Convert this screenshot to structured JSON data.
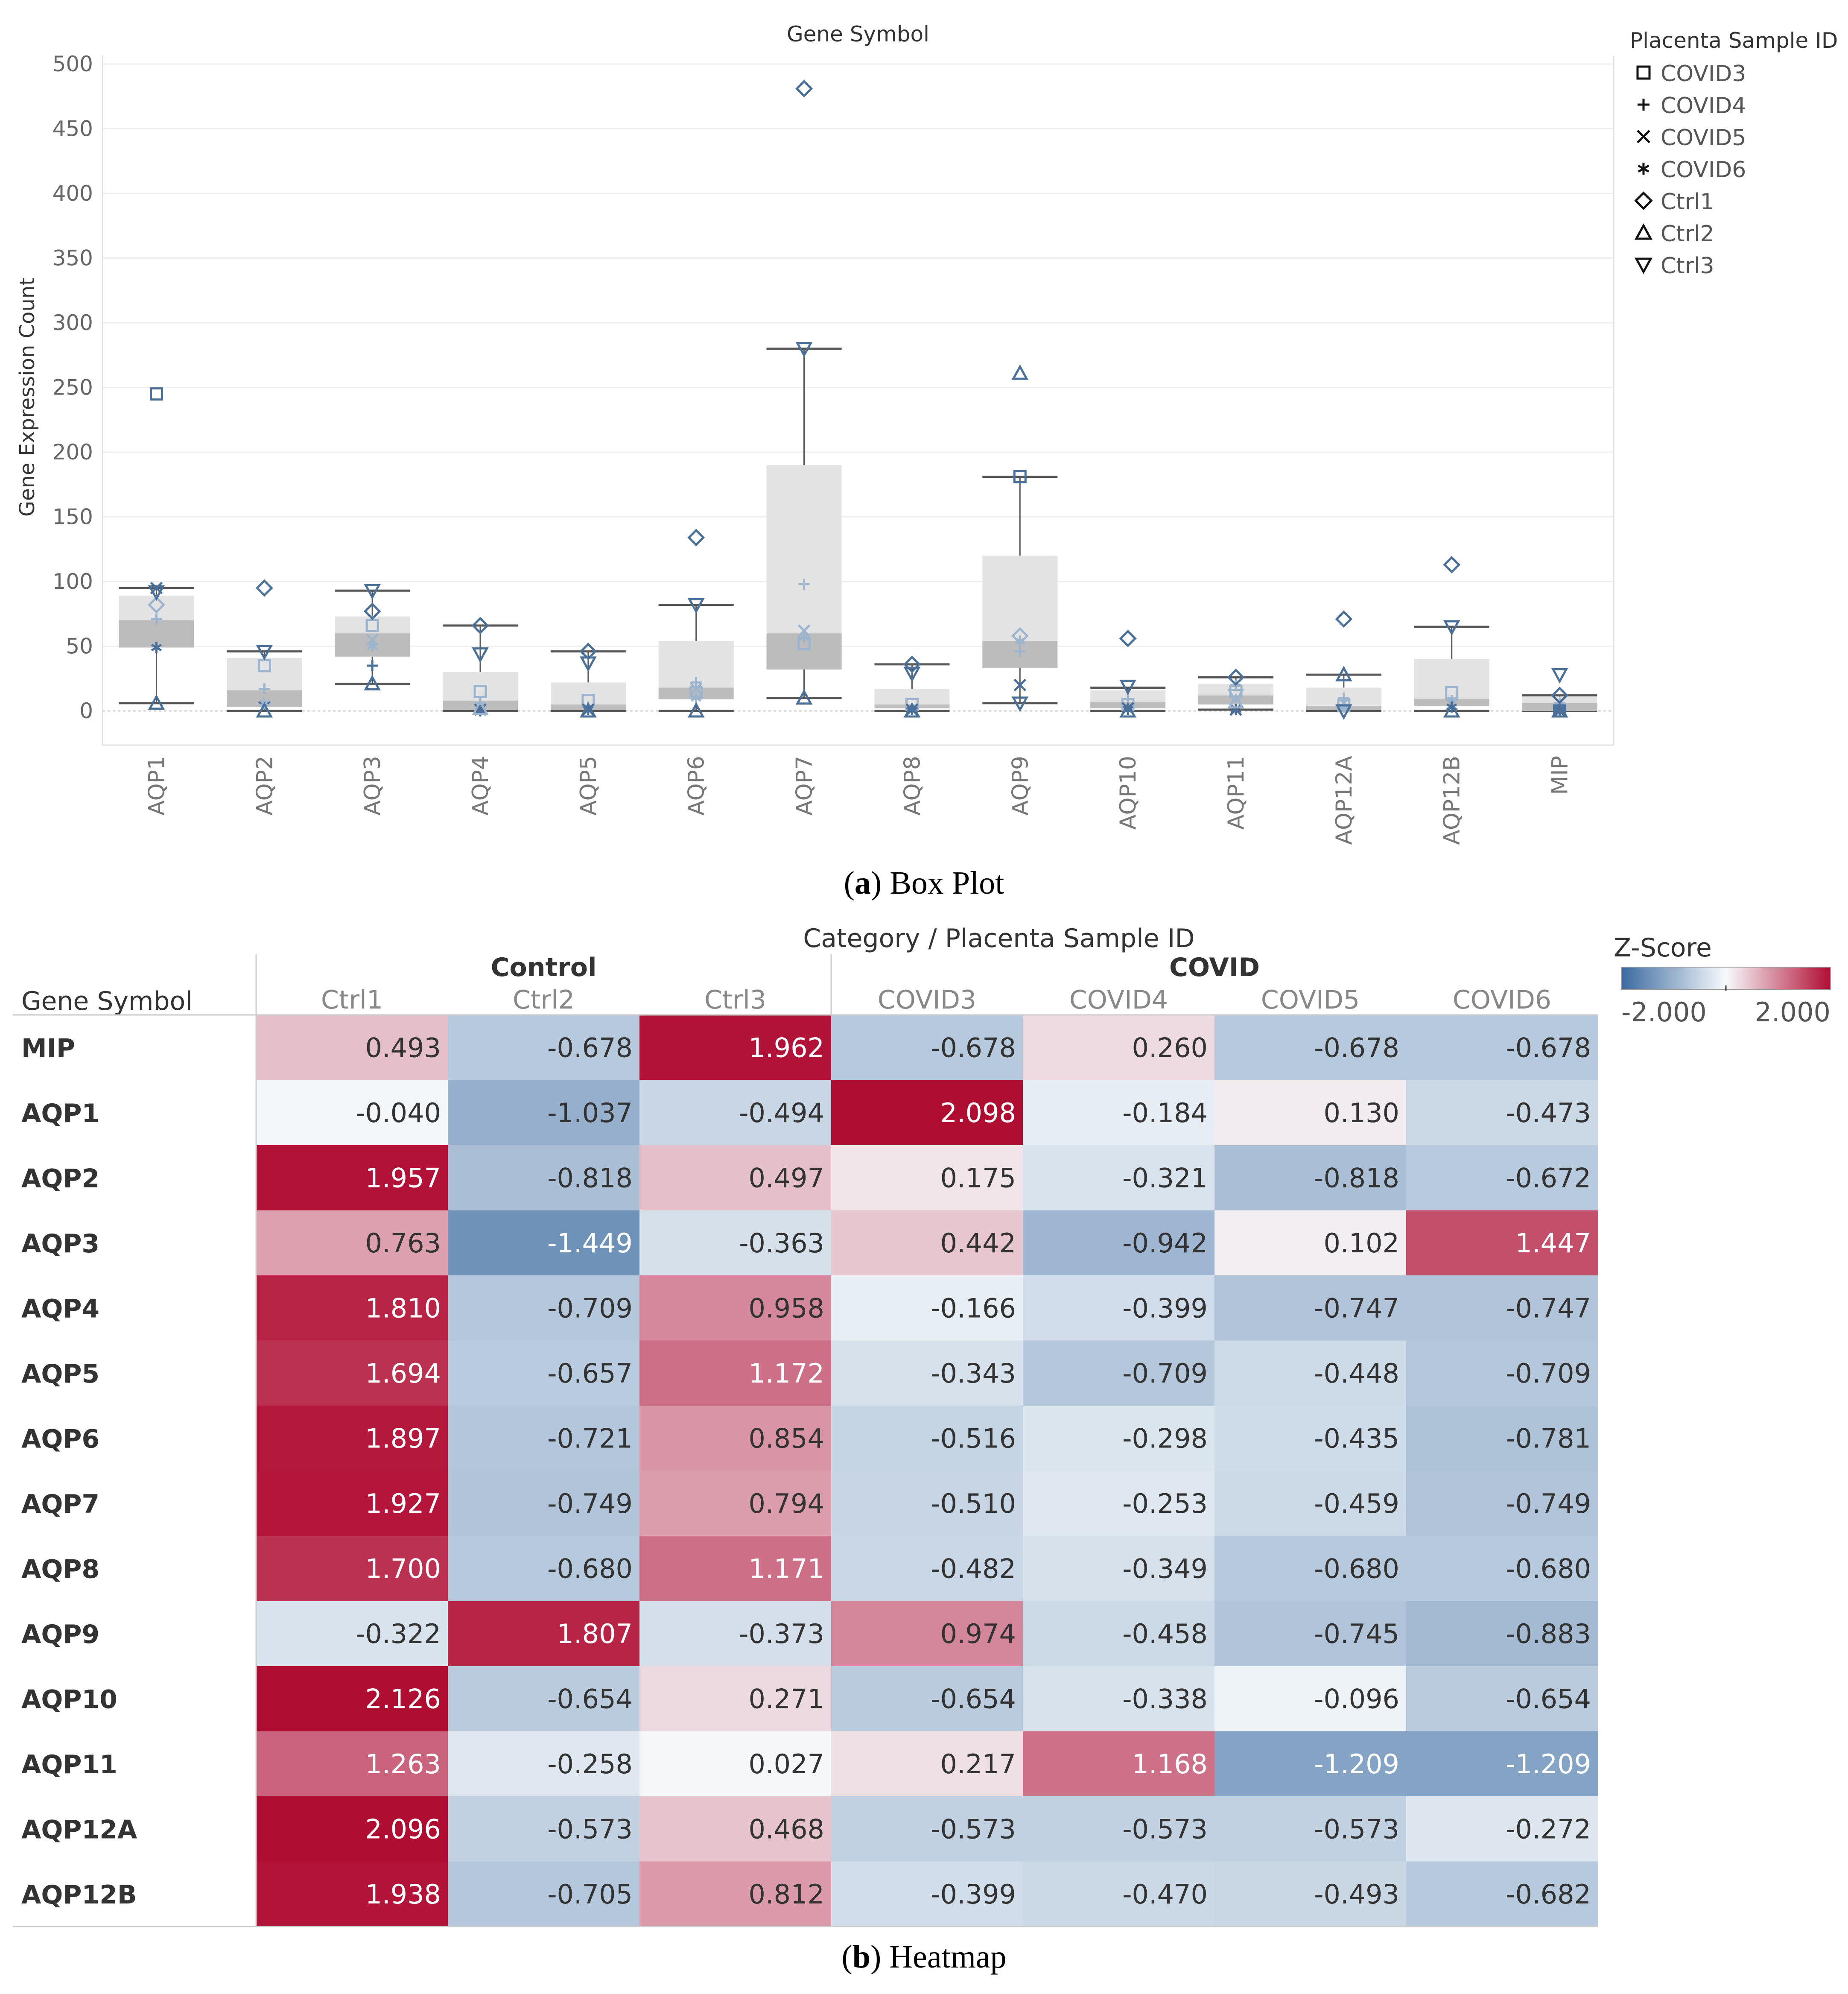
{
  "captions": {
    "a_letter": "a",
    "a_text": " Box Plot",
    "b_letter": "b",
    "b_text": " Heatmap"
  },
  "chart_data": [
    {
      "type": "box",
      "title": "Gene Symbol",
      "xlabel": "",
      "ylabel": "Gene Expression Count",
      "ylim": [
        0,
        500
      ],
      "yticks": [
        0,
        50,
        100,
        150,
        200,
        250,
        300,
        350,
        400,
        450,
        500
      ],
      "categories": [
        "AQP1",
        "AQP2",
        "AQP3",
        "AQP4",
        "AQP5",
        "AQP6",
        "AQP7",
        "AQP8",
        "AQP9",
        "AQP10",
        "AQP11",
        "AQP12A",
        "AQP12B",
        "MIP"
      ],
      "legend": {
        "title": "Placenta Sample ID",
        "position": "top-right",
        "entries": [
          {
            "name": "COVID3",
            "marker": "square"
          },
          {
            "name": "COVID4",
            "marker": "plus"
          },
          {
            "name": "COVID5",
            "marker": "cross"
          },
          {
            "name": "COVID6",
            "marker": "asterisk"
          },
          {
            "name": "Ctrl1",
            "marker": "diamond"
          },
          {
            "name": "Ctrl2",
            "marker": "triangle-up"
          },
          {
            "name": "Ctrl3",
            "marker": "triangle-down"
          }
        ]
      },
      "boxes": [
        {
          "min": 6,
          "q1": 49,
          "median": 70,
          "q3": 89,
          "max": 95
        },
        {
          "min": 0,
          "q1": 3,
          "median": 16,
          "q3": 41,
          "max": 46
        },
        {
          "min": 21,
          "q1": 42,
          "median": 60,
          "q3": 73,
          "max": 93
        },
        {
          "min": 0,
          "q1": 1,
          "median": 8,
          "q3": 30,
          "max": 66
        },
        {
          "min": 0,
          "q1": 1,
          "median": 5,
          "q3": 22,
          "max": 46
        },
        {
          "min": 0,
          "q1": 9,
          "median": 18,
          "q3": 54,
          "max": 82
        },
        {
          "min": 10,
          "q1": 32,
          "median": 60,
          "q3": 190,
          "max": 280
        },
        {
          "min": 0,
          "q1": 2,
          "median": 5,
          "q3": 17,
          "max": 36
        },
        {
          "min": 6,
          "q1": 33,
          "median": 54,
          "q3": 120,
          "max": 181
        },
        {
          "min": 0,
          "q1": 2,
          "median": 7,
          "q3": 16,
          "max": 18
        },
        {
          "min": 1,
          "q1": 5,
          "median": 12,
          "q3": 21,
          "max": 26
        },
        {
          "min": 0,
          "q1": 1,
          "median": 4,
          "q3": 18,
          "max": 28
        },
        {
          "min": 0,
          "q1": 4,
          "median": 9,
          "q3": 40,
          "max": 65
        },
        {
          "min": 0,
          "q1": 0,
          "median": 6,
          "q3": 11,
          "max": 12
        }
      ],
      "points": [
        {
          "gene": "AQP1",
          "COVID3": 245,
          "COVID4": 71,
          "COVID5": 95,
          "COVID6": 49,
          "Ctrl1": 82,
          "Ctrl2": 6,
          "Ctrl3": 92
        },
        {
          "gene": "AQP2",
          "COVID3": 35,
          "COVID4": 17,
          "COVID5": 3,
          "COVID6": 6,
          "Ctrl1": 95,
          "Ctrl2": 0,
          "Ctrl3": 46
        },
        {
          "gene": "AQP3",
          "COVID3": 66,
          "COVID4": 35,
          "COVID5": 55,
          "COVID6": 50,
          "Ctrl1": 77,
          "Ctrl2": 21,
          "Ctrl3": 93
        },
        {
          "gene": "AQP4",
          "COVID3": 15,
          "COVID4": 6,
          "COVID5": 1,
          "COVID6": 0,
          "Ctrl1": 66,
          "Ctrl2": 2,
          "Ctrl3": 44
        },
        {
          "gene": "AQP5",
          "COVID3": 8,
          "COVID4": 3,
          "COVID5": 1,
          "COVID6": 1,
          "Ctrl1": 46,
          "Ctrl2": 0,
          "Ctrl3": 37
        },
        {
          "gene": "AQP6",
          "COVID3": 14,
          "COVID4": 22,
          "COVID5": 17,
          "COVID6": 10,
          "Ctrl1": 134,
          "Ctrl2": 0,
          "Ctrl3": 82
        },
        {
          "gene": "AQP7",
          "COVID3": 52,
          "COVID4": 98,
          "COVID5": 62,
          "COVID6": 57,
          "Ctrl1": 481,
          "Ctrl2": 10,
          "Ctrl3": 280
        },
        {
          "gene": "AQP8",
          "COVID3": 5,
          "COVID4": 2,
          "COVID5": 1,
          "COVID6": 1,
          "Ctrl1": 36,
          "Ctrl2": 0,
          "Ctrl3": 29
        },
        {
          "gene": "AQP9",
          "COVID3": 181,
          "COVID4": 46,
          "COVID5": 20,
          "COVID6": 54,
          "Ctrl1": 58,
          "Ctrl2": 261,
          "Ctrl3": 6
        },
        {
          "gene": "AQP10",
          "COVID3": 5,
          "COVID4": 9,
          "COVID5": 2,
          "COVID6": 1,
          "Ctrl1": 56,
          "Ctrl2": 0,
          "Ctrl3": 19
        },
        {
          "gene": "AQP11",
          "COVID3": 15,
          "COVID4": 20,
          "COVID5": 1,
          "COVID6": 1,
          "Ctrl1": 26,
          "Ctrl2": 7,
          "Ctrl3": 12
        },
        {
          "gene": "AQP12A",
          "COVID3": 4,
          "COVID4": 10,
          "COVID5": 6,
          "COVID6": 3,
          "Ctrl1": 71,
          "Ctrl2": 28,
          "Ctrl3": 0
        },
        {
          "gene": "AQP12B",
          "COVID3": 14,
          "COVID4": 8,
          "COVID5": 5,
          "COVID6": 3,
          "Ctrl1": 113,
          "Ctrl2": 0,
          "Ctrl3": 65
        },
        {
          "gene": "MIP",
          "COVID3": 0,
          "COVID4": 6,
          "COVID5": 0,
          "COVID6": 0,
          "Ctrl1": 12,
          "Ctrl2": 0,
          "Ctrl3": 28
        }
      ]
    },
    {
      "type": "heatmap",
      "title": "Category / Placenta Sample ID",
      "row_header": "Gene Symbol",
      "groups": [
        {
          "name": "Control",
          "columns": [
            "Ctrl1",
            "Ctrl2",
            "Ctrl3"
          ]
        },
        {
          "name": "COVID",
          "columns": [
            "COVID3",
            "COVID4",
            "COVID5",
            "COVID6"
          ]
        }
      ],
      "columns": [
        "Ctrl1",
        "Ctrl2",
        "Ctrl3",
        "COVID3",
        "COVID4",
        "COVID5",
        "COVID6"
      ],
      "rows": [
        "MIP",
        "AQP1",
        "AQP2",
        "AQP3",
        "AQP4",
        "AQP5",
        "AQP6",
        "AQP7",
        "AQP8",
        "AQP9",
        "AQP10",
        "AQP11",
        "AQP12A",
        "AQP12B"
      ],
      "values": [
        [
          "0.493",
          "-0.678",
          "1.962",
          "-0.678",
          "0.260",
          "-0.678",
          "-0.678"
        ],
        [
          "-0.040",
          "-1.037",
          "-0.494",
          "2.098",
          "-0.184",
          "0.130",
          "-0.473"
        ],
        [
          "1.957",
          "-0.818",
          "0.497",
          "0.175",
          "-0.321",
          "-0.818",
          "-0.672"
        ],
        [
          "0.763",
          "-1.449",
          "-0.363",
          "0.442",
          "-0.942",
          "0.102",
          "1.447"
        ],
        [
          "1.810",
          "-0.709",
          "0.958",
          "-0.166",
          "-0.399",
          "-0.747",
          "-0.747"
        ],
        [
          "1.694",
          "-0.657",
          "1.172",
          "-0.343",
          "-0.709",
          "-0.448",
          "-0.709"
        ],
        [
          "1.897",
          "-0.721",
          "0.854",
          "-0.516",
          "-0.298",
          "-0.435",
          "-0.781"
        ],
        [
          "1.927",
          "-0.749",
          "0.794",
          "-0.510",
          "-0.253",
          "-0.459",
          "-0.749"
        ],
        [
          "1.700",
          "-0.680",
          "1.171",
          "-0.482",
          "-0.349",
          "-0.680",
          "-0.680"
        ],
        [
          "-0.322",
          "1.807",
          "-0.373",
          "0.974",
          "-0.458",
          "-0.745",
          "-0.883"
        ],
        [
          "2.126",
          "-0.654",
          "0.271",
          "-0.654",
          "-0.338",
          "-0.096",
          "-0.654"
        ],
        [
          "1.263",
          "-0.258",
          "0.027",
          "0.217",
          "1.168",
          "-1.209",
          "-1.209"
        ],
        [
          "2.096",
          "-0.573",
          "0.468",
          "-0.573",
          "-0.573",
          "-0.573",
          "-0.272"
        ],
        [
          "1.938",
          "-0.705",
          "0.812",
          "-0.399",
          "-0.470",
          "-0.493",
          "-0.682"
        ]
      ],
      "colorbar": {
        "title": "Z-Score",
        "min_label": "-2.000",
        "max_label": "2.000",
        "min": -2,
        "max": 2,
        "low_color": "#3b6aa0",
        "mid_color": "#f7fafc",
        "high_color": "#b00d33"
      }
    }
  ]
}
